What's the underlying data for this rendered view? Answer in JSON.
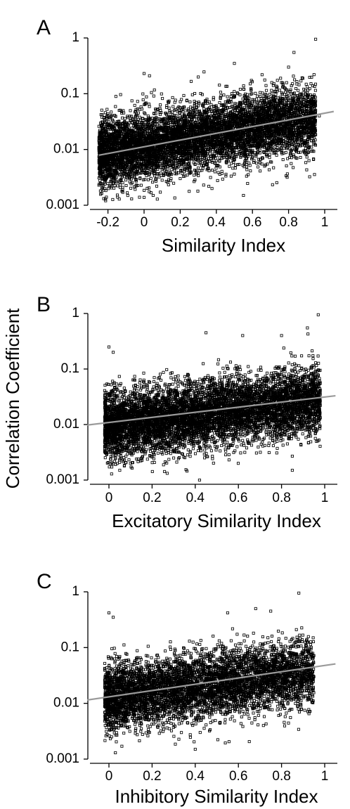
{
  "figure": {
    "ylabel": "Correlation Coefficient"
  },
  "chart_data": [
    {
      "type": "scatter",
      "panel": "A",
      "xlabel": "Similarity Index",
      "x_ticks": [
        "-0.2",
        "0",
        "0.2",
        "0.4",
        "0.6",
        "0.8",
        "1"
      ],
      "y_ticks": [
        "1",
        "0.1",
        "0.01",
        "0.001"
      ],
      "xlim": [
        -0.3,
        1.05
      ],
      "ylim": [
        0.001,
        1
      ],
      "yscale": "log",
      "grid": false,
      "series": [
        {
          "marker": "open-square",
          "points": [
            [
              -0.25,
              0.026
            ],
            [
              0.95,
              0.95
            ],
            [
              0.0,
              0.23
            ],
            [
              0.03,
              0.21
            ],
            [
              -0.22,
              0.016
            ],
            [
              -0.15,
              0.013
            ],
            [
              0.07,
              0.0022
            ],
            [
              0.05,
              0.0015
            ],
            [
              0.55,
              0.0015
            ],
            [
              0.2,
              0.003
            ],
            [
              0.83,
              0.55
            ],
            [
              0.8,
              0.3
            ],
            [
              0.92,
              0.02
            ],
            [
              0.97,
              0.04
            ],
            [
              0.7,
              0.006
            ],
            [
              0.3,
              0.2
            ],
            [
              0.5,
              0.35
            ]
          ],
          "point_count_approx": 7000,
          "cloud": {
            "x_range": [
              -0.25,
              0.95
            ],
            "y_log10_center_at_x0": -1.95,
            "y_log10_center_at_x1": -1.4,
            "y_log10_spread_sd": 0.3
          }
        }
      ],
      "fit_line": {
        "x": [
          -0.25,
          1.05
        ],
        "y": [
          0.0079,
          0.048
        ],
        "color": "#9a9a9a"
      }
    },
    {
      "type": "scatter",
      "panel": "B",
      "xlabel": "Excitatory Similarity Index",
      "x_ticks": [
        "0",
        "0.2",
        "0.4",
        "0.6",
        "0.8",
        "1"
      ],
      "y_ticks": [
        "1",
        "0.1",
        "0.01",
        "0.001"
      ],
      "xlim": [
        -0.1,
        1.05
      ],
      "ylim": [
        0.001,
        1
      ],
      "yscale": "log",
      "grid": false,
      "series": [
        {
          "marker": "open-square",
          "points": [
            [
              0.0,
              0.25
            ],
            [
              0.02,
              0.2
            ],
            [
              0.97,
              0.95
            ],
            [
              0.92,
              0.55
            ],
            [
              0.45,
              0.45
            ],
            [
              0.62,
              0.4
            ],
            [
              0.8,
              0.4
            ],
            [
              0.05,
              0.0015
            ],
            [
              0.1,
              0.002
            ],
            [
              0.42,
              0.001
            ],
            [
              0.85,
              0.0015
            ],
            [
              0.3,
              0.0025
            ]
          ],
          "point_count_approx": 7000,
          "cloud": {
            "x_range": [
              -0.02,
              0.98
            ],
            "y_log10_center_at_x0": -2.02,
            "y_log10_center_at_x1": -1.55,
            "y_log10_spread_sd": 0.3
          }
        }
      ],
      "fit_line": {
        "x": [
          -0.1,
          1.05
        ],
        "y": [
          0.0098,
          0.033
        ],
        "color": "#9a9a9a"
      }
    },
    {
      "type": "scatter",
      "panel": "C",
      "xlabel": "Inhibitory Similarity Index",
      "x_ticks": [
        "0",
        "0.2",
        "0.4",
        "0.6",
        "0.8",
        "1"
      ],
      "y_ticks": [
        "1",
        "0.1",
        "0.01",
        "0.001"
      ],
      "xlim": [
        -0.1,
        1.05
      ],
      "ylim": [
        0.001,
        1
      ],
      "yscale": "log",
      "grid": false,
      "series": [
        {
          "marker": "open-square",
          "points": [
            [
              0.0,
              0.42
            ],
            [
              0.02,
              0.35
            ],
            [
              0.88,
              0.95
            ],
            [
              0.68,
              0.5
            ],
            [
              0.75,
              0.45
            ],
            [
              0.55,
              0.42
            ],
            [
              0.4,
              0.0015
            ],
            [
              0.03,
              0.0013
            ],
            [
              0.06,
              0.0017
            ],
            [
              0.95,
              0.03
            ]
          ],
          "point_count_approx": 5500,
          "cloud": {
            "x_range": [
              -0.02,
              0.95
            ],
            "y_log10_center_at_x0": -1.88,
            "y_log10_center_at_x1": -1.42,
            "y_log10_spread_sd": 0.3
          }
        }
      ],
      "fit_line": {
        "x": [
          -0.1,
          1.05
        ],
        "y": [
          0.0115,
          0.051
        ],
        "color": "#9a9a9a"
      }
    }
  ]
}
